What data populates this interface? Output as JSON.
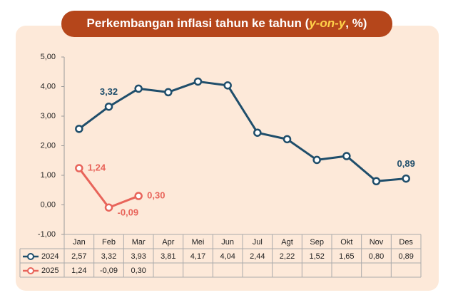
{
  "chart_data": {
    "type": "line",
    "title": [
      "Perkembangan inflasi tahun ke tahun (",
      "y-on-y",
      ", %)"
    ],
    "categories": [
      "Jan",
      "Feb",
      "Mar",
      "Apr",
      "Mei",
      "Jun",
      "Jul",
      "Agt",
      "Sep",
      "Okt",
      "Nov",
      "Des"
    ],
    "series": [
      {
        "name": "2024",
        "color": "#1f4e6b",
        "values": [
          2.57,
          3.32,
          3.93,
          3.81,
          4.17,
          4.04,
          2.44,
          2.22,
          1.52,
          1.65,
          0.8,
          0.89
        ],
        "value_labels": [
          "2,57",
          "3,32",
          "3,93",
          "3,81",
          "4,17",
          "4,04",
          "2,44",
          "2,22",
          "1,52",
          "1,65",
          "0,80",
          "0,89"
        ],
        "data_labels": [
          1,
          11
        ]
      },
      {
        "name": "2025",
        "color": "#e8645a",
        "values": [
          1.24,
          -0.09,
          0.3,
          null,
          null,
          null,
          null,
          null,
          null,
          null,
          null,
          null
        ],
        "value_labels": [
          "1,24",
          "-0,09",
          "0,30",
          null,
          null,
          null,
          null,
          null,
          null,
          null,
          null,
          null
        ],
        "data_labels": [
          0,
          1,
          2
        ]
      }
    ],
    "ylim": [
      -1,
      5
    ],
    "yticks": [
      {
        "value": -1,
        "label": "-1,00"
      },
      {
        "value": 0,
        "label": "0,00"
      },
      {
        "value": 1,
        "label": "1,00"
      },
      {
        "value": 2,
        "label": "2,00"
      },
      {
        "value": 3,
        "label": "3,00"
      },
      {
        "value": 4,
        "label": "4,00"
      },
      {
        "value": 5,
        "label": "5,00"
      }
    ],
    "grid": false
  }
}
